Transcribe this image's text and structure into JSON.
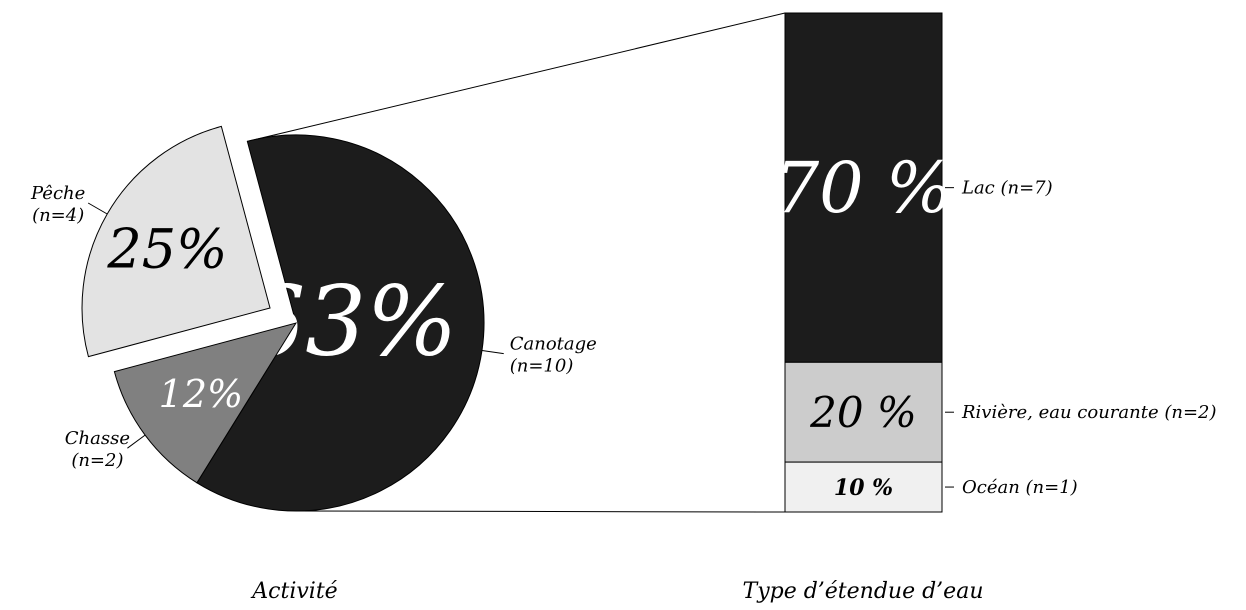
{
  "chart_data": [
    {
      "type": "pie",
      "xlabel": "Activité",
      "slices": [
        {
          "label": "Canotage",
          "n_label": "(n=10)",
          "value": 63,
          "pct_label": "63%",
          "color": "#1c1c1c",
          "text_color": "#ffffff"
        },
        {
          "label": "Chasse",
          "n_label": "(n=2)",
          "value": 12,
          "pct_label": "12%",
          "color": "#808080",
          "text_color": "#ffffff"
        },
        {
          "label": "Pêche",
          "n_label": "(n=4)",
          "value": 25,
          "pct_label": "25%",
          "color": "#e3e3e3",
          "text_color": "#000000",
          "exploded": true
        }
      ]
    },
    {
      "type": "bar",
      "stacked": true,
      "xlabel": "Type d’étendue d’eau",
      "segments": [
        {
          "label": "Lac (n=7)",
          "value": 70,
          "pct_label": "70 %",
          "color": "#1c1c1c",
          "text_color": "#ffffff"
        },
        {
          "label": "Rivière, eau courante (n=2)",
          "value": 20,
          "pct_label": "20 %",
          "color": "#cccccc",
          "text_color": "#000000"
        },
        {
          "label": "Océan (n=1)",
          "value": 10,
          "pct_label": "10 %",
          "color": "#f0f0f0",
          "text_color": "#000000"
        }
      ]
    }
  ]
}
